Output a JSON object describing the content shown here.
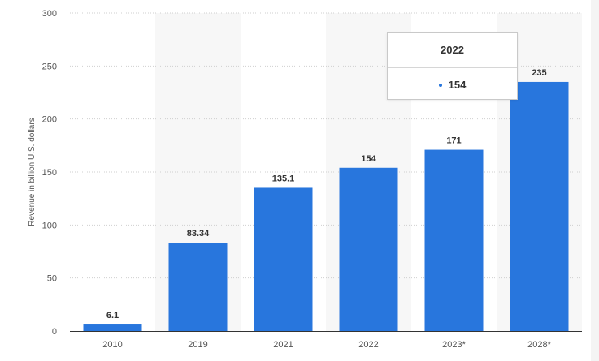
{
  "chart_data": {
    "type": "bar",
    "categories": [
      "2010",
      "2019",
      "2021",
      "2022",
      "2023*",
      "2028*"
    ],
    "values": [
      6.1,
      83.34,
      135.1,
      154,
      171,
      235
    ],
    "value_labels": [
      "6.1",
      "83.34",
      "135.1",
      "154",
      "171",
      "235"
    ],
    "title": "",
    "xlabel": "",
    "ylabel": "Revenue in billion U.S. dollars",
    "ylim": [
      0,
      300
    ],
    "yticks": [
      0,
      50,
      100,
      150,
      200,
      250,
      300
    ],
    "ytick_labels": [
      "0",
      "50",
      "100",
      "150",
      "200",
      "250",
      "300"
    ],
    "grid": true,
    "legend": "none",
    "alternating_column_bands": true,
    "colors": {
      "bar": "#2876dd",
      "band": "#f7f7f7",
      "grid": "#cfcfcf",
      "axis_text": "#555555",
      "label_text": "#333333"
    }
  },
  "tooltip": {
    "title": "2022",
    "value": "154"
  }
}
